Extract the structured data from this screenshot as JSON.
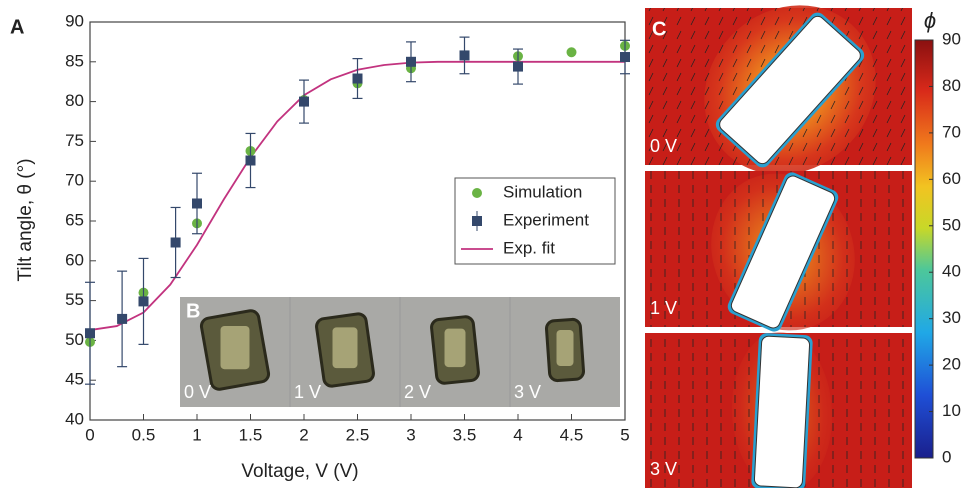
{
  "chart_data": {
    "type": "scatter",
    "panel_label": "A",
    "xlabel": "Voltage, V (V)",
    "ylabel": "Tilt angle, θ (°)",
    "xlim": [
      0,
      5
    ],
    "xticks": [
      0,
      0.5,
      1,
      1.5,
      2,
      2.5,
      3,
      3.5,
      4,
      4.5,
      5
    ],
    "ylim": [
      40,
      90
    ],
    "yticks": [
      40,
      45,
      50,
      55,
      60,
      65,
      70,
      75,
      80,
      85,
      90
    ],
    "legend": "right",
    "series": [
      {
        "name": "Simulation",
        "color": "#6ab344",
        "marker": "circle",
        "x": [
          0,
          0.5,
          1,
          1.5,
          2,
          2.5,
          3,
          3.5,
          4,
          4.5,
          5
        ],
        "values": [
          49.8,
          56,
          64.7,
          73.8,
          80.2,
          82.3,
          84.2,
          85.8,
          85.7,
          86.2,
          87
        ]
      },
      {
        "name": "Experiment",
        "color": "#34486b",
        "marker": "square",
        "x": [
          0,
          0.3,
          0.5,
          0.8,
          1,
          1.5,
          2,
          2.5,
          3,
          3.5,
          4,
          5
        ],
        "values": [
          50.9,
          52.7,
          54.9,
          62.3,
          67.2,
          72.6,
          80,
          82.9,
          85,
          85.8,
          84.4,
          85.6
        ],
        "errors": [
          6.4,
          6,
          5.4,
          4.4,
          3.8,
          3.4,
          2.7,
          2.5,
          2.5,
          2.3,
          2.2,
          2.1
        ]
      },
      {
        "name": "Exp. fit",
        "color": "#c2337f",
        "marker": "line",
        "x": [
          0,
          0.25,
          0.5,
          0.75,
          1,
          1.25,
          1.5,
          1.75,
          2,
          2.25,
          2.5,
          2.75,
          3,
          3.25,
          3.5,
          4,
          4.5,
          5
        ],
        "values": [
          51.3,
          51.8,
          53.5,
          57,
          62,
          67.7,
          73,
          77.5,
          80.8,
          82.8,
          84,
          84.6,
          84.9,
          85,
          85,
          85,
          85,
          85
        ]
      }
    ]
  },
  "inset": {
    "label": "B",
    "frames": [
      "0 V",
      "1 V",
      "2 V",
      "3 V"
    ]
  },
  "field_maps": {
    "label": "C",
    "frames": [
      "0 V",
      "1 V",
      "3 V"
    ],
    "colorbar": {
      "title": "ϕ",
      "lim": [
        0,
        90
      ],
      "ticks": [
        0,
        10,
        20,
        30,
        40,
        50,
        60,
        70,
        80,
        90
      ]
    }
  }
}
